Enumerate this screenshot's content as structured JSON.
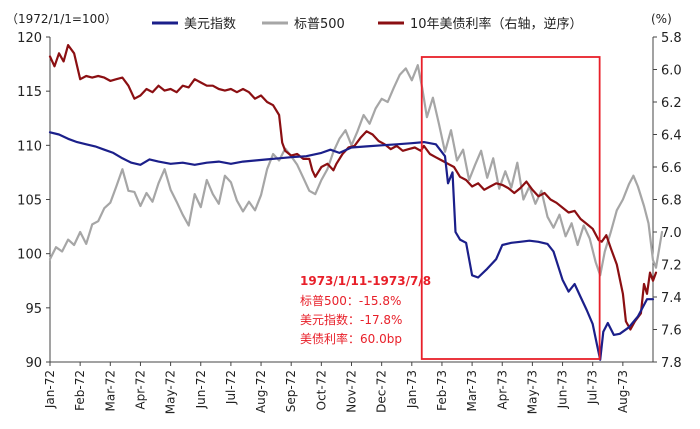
{
  "chart_data": {
    "type": "line",
    "left_axis_unit": "（1972/1/1=100）",
    "right_axis_unit": "(%)",
    "left_ylim": [
      90,
      120
    ],
    "left_ticks": [
      "120",
      "115",
      "110",
      "105",
      "100",
      "95",
      "90"
    ],
    "right_ylim": [
      5.8,
      7.8
    ],
    "right_inverted": true,
    "right_ticks": [
      "5.8",
      "6.0",
      "6.2",
      "6.4",
      "6.6",
      "6.8",
      "7.0",
      "7.2",
      "7.4",
      "7.6",
      "7.8"
    ],
    "x_ticks": [
      "Jan-72",
      "Feb-72",
      "Mar-72",
      "Apr-72",
      "May-72",
      "Jun-72",
      "Jul-72",
      "Aug-72",
      "Sep-72",
      "Oct-72",
      "Nov-72",
      "Dec-72",
      "Jan-73",
      "Feb-73",
      "Mar-73",
      "Apr-73",
      "May-73",
      "Jun-73",
      "Jul-73",
      "Aug-73"
    ],
    "x_range_months": [
      0,
      20.0
    ],
    "legend": [
      "美元指数",
      "标普500",
      "10年美债利率（右轴，逆序）"
    ],
    "colors": {
      "dxy": "#1b1f8a",
      "spx": "#a6a6a6",
      "yield": "#8b0f12",
      "highlight": "#e8202a"
    },
    "highlight_range_months": [
      12.33,
      18.23
    ],
    "annotation": {
      "title": "1973/1/11-1973/7/8",
      "lines": [
        "标普500：-15.8%",
        "美元指数：-17.8%",
        "美债利率：60.0bp"
      ]
    },
    "series": [
      {
        "name": "美元指数",
        "axis": "left",
        "points": [
          [
            0.0,
            111.2
          ],
          [
            0.3,
            111.0
          ],
          [
            0.6,
            110.6
          ],
          [
            0.9,
            110.3
          ],
          [
            1.2,
            110.1
          ],
          [
            1.5,
            109.9
          ],
          [
            1.8,
            109.6
          ],
          [
            2.1,
            109.3
          ],
          [
            2.4,
            108.8
          ],
          [
            2.7,
            108.4
          ],
          [
            3.0,
            108.2
          ],
          [
            3.3,
            108.7
          ],
          [
            3.6,
            108.5
          ],
          [
            4.0,
            108.3
          ],
          [
            4.4,
            108.4
          ],
          [
            4.8,
            108.2
          ],
          [
            5.2,
            108.4
          ],
          [
            5.6,
            108.5
          ],
          [
            6.0,
            108.3
          ],
          [
            6.4,
            108.5
          ],
          [
            6.8,
            108.6
          ],
          [
            7.2,
            108.7
          ],
          [
            7.6,
            108.8
          ],
          [
            8.0,
            108.9
          ],
          [
            8.5,
            109.0
          ],
          [
            9.0,
            109.3
          ],
          [
            9.3,
            109.6
          ],
          [
            9.6,
            109.3
          ],
          [
            10.0,
            109.8
          ],
          [
            10.5,
            109.9
          ],
          [
            11.0,
            110.0
          ],
          [
            11.5,
            110.1
          ],
          [
            12.0,
            110.2
          ],
          [
            12.4,
            110.3
          ],
          [
            12.8,
            110.1
          ],
          [
            13.1,
            109.0
          ],
          [
            13.2,
            106.5
          ],
          [
            13.35,
            107.5
          ],
          [
            13.45,
            102.0
          ],
          [
            13.6,
            101.3
          ],
          [
            13.8,
            101.0
          ],
          [
            14.0,
            98.0
          ],
          [
            14.2,
            97.8
          ],
          [
            14.5,
            98.6
          ],
          [
            14.8,
            99.5
          ],
          [
            15.0,
            100.8
          ],
          [
            15.3,
            101.0
          ],
          [
            15.6,
            101.1
          ],
          [
            15.9,
            101.2
          ],
          [
            16.2,
            101.1
          ],
          [
            16.5,
            100.9
          ],
          [
            16.7,
            100.2
          ],
          [
            17.0,
            97.6
          ],
          [
            17.2,
            96.5
          ],
          [
            17.4,
            97.2
          ],
          [
            17.6,
            96.0
          ],
          [
            17.8,
            94.8
          ],
          [
            18.0,
            93.5
          ],
          [
            18.15,
            91.5
          ],
          [
            18.25,
            90.2
          ],
          [
            18.35,
            92.8
          ],
          [
            18.5,
            93.6
          ],
          [
            18.7,
            92.5
          ],
          [
            18.9,
            92.6
          ],
          [
            19.2,
            93.2
          ],
          [
            19.5,
            94.2
          ],
          [
            19.8,
            95.8
          ],
          [
            20.0,
            95.8
          ]
        ]
      },
      {
        "name": "标普500",
        "axis": "left",
        "points": [
          [
            0.0,
            99.5
          ],
          [
            0.2,
            100.6
          ],
          [
            0.4,
            100.2
          ],
          [
            0.6,
            101.3
          ],
          [
            0.8,
            100.8
          ],
          [
            1.0,
            102.0
          ],
          [
            1.2,
            100.9
          ],
          [
            1.4,
            102.7
          ],
          [
            1.6,
            103.0
          ],
          [
            1.8,
            104.2
          ],
          [
            2.0,
            104.7
          ],
          [
            2.2,
            106.2
          ],
          [
            2.4,
            107.8
          ],
          [
            2.6,
            105.8
          ],
          [
            2.8,
            105.7
          ],
          [
            3.0,
            104.4
          ],
          [
            3.2,
            105.6
          ],
          [
            3.4,
            104.8
          ],
          [
            3.6,
            106.5
          ],
          [
            3.8,
            107.8
          ],
          [
            4.0,
            105.9
          ],
          [
            4.2,
            104.8
          ],
          [
            4.4,
            103.6
          ],
          [
            4.6,
            102.6
          ],
          [
            4.8,
            105.5
          ],
          [
            5.0,
            104.3
          ],
          [
            5.2,
            106.8
          ],
          [
            5.4,
            105.5
          ],
          [
            5.6,
            104.6
          ],
          [
            5.8,
            107.2
          ],
          [
            6.0,
            106.6
          ],
          [
            6.2,
            104.9
          ],
          [
            6.4,
            103.9
          ],
          [
            6.6,
            104.8
          ],
          [
            6.8,
            104.0
          ],
          [
            7.0,
            105.4
          ],
          [
            7.2,
            107.8
          ],
          [
            7.4,
            109.2
          ],
          [
            7.6,
            108.6
          ],
          [
            7.8,
            109.7
          ],
          [
            8.0,
            109.0
          ],
          [
            8.2,
            108.2
          ],
          [
            8.4,
            107.0
          ],
          [
            8.6,
            105.8
          ],
          [
            8.8,
            105.5
          ],
          [
            9.0,
            106.8
          ],
          [
            9.2,
            107.8
          ],
          [
            9.4,
            109.4
          ],
          [
            9.6,
            110.6
          ],
          [
            9.8,
            111.4
          ],
          [
            10.0,
            110.0
          ],
          [
            10.2,
            111.3
          ],
          [
            10.4,
            112.8
          ],
          [
            10.6,
            112.0
          ],
          [
            10.8,
            113.4
          ],
          [
            11.0,
            114.3
          ],
          [
            11.2,
            114.0
          ],
          [
            11.4,
            115.3
          ],
          [
            11.6,
            116.5
          ],
          [
            11.8,
            117.1
          ],
          [
            12.0,
            116.0
          ],
          [
            12.2,
            117.4
          ],
          [
            12.35,
            115.2
          ],
          [
            12.5,
            112.6
          ],
          [
            12.7,
            114.4
          ],
          [
            12.9,
            112.0
          ],
          [
            13.1,
            109.4
          ],
          [
            13.3,
            111.4
          ],
          [
            13.5,
            108.6
          ],
          [
            13.7,
            109.6
          ],
          [
            13.9,
            106.8
          ],
          [
            14.1,
            108.2
          ],
          [
            14.3,
            109.5
          ],
          [
            14.5,
            107.0
          ],
          [
            14.7,
            108.8
          ],
          [
            14.9,
            106.0
          ],
          [
            15.1,
            107.6
          ],
          [
            15.3,
            106.1
          ],
          [
            15.5,
            108.4
          ],
          [
            15.7,
            105.0
          ],
          [
            15.9,
            106.2
          ],
          [
            16.1,
            104.6
          ],
          [
            16.3,
            105.8
          ],
          [
            16.5,
            103.4
          ],
          [
            16.7,
            102.4
          ],
          [
            16.9,
            103.6
          ],
          [
            17.1,
            101.6
          ],
          [
            17.3,
            102.8
          ],
          [
            17.5,
            100.8
          ],
          [
            17.7,
            102.6
          ],
          [
            17.9,
            101.4
          ],
          [
            18.1,
            99.2
          ],
          [
            18.25,
            98.0
          ],
          [
            18.4,
            100.2
          ],
          [
            18.6,
            102.0
          ],
          [
            18.8,
            104.0
          ],
          [
            19.0,
            105.0
          ],
          [
            19.2,
            106.4
          ],
          [
            19.35,
            107.2
          ],
          [
            19.5,
            106.2
          ],
          [
            19.7,
            104.4
          ],
          [
            19.85,
            102.8
          ],
          [
            20.0,
            99.4
          ],
          [
            20.1,
            98.7
          ],
          [
            20.3,
            102.0
          ]
        ]
      },
      {
        "name": "10年美债利率（右轴，逆序）",
        "axis": "right",
        "points": [
          [
            0.0,
            5.92
          ],
          [
            0.15,
            5.98
          ],
          [
            0.3,
            5.9
          ],
          [
            0.45,
            5.95
          ],
          [
            0.6,
            5.85
          ],
          [
            0.8,
            5.9
          ],
          [
            1.0,
            6.06
          ],
          [
            1.2,
            6.04
          ],
          [
            1.4,
            6.05
          ],
          [
            1.6,
            6.04
          ],
          [
            1.8,
            6.05
          ],
          [
            2.0,
            6.07
          ],
          [
            2.2,
            6.06
          ],
          [
            2.4,
            6.05
          ],
          [
            2.6,
            6.1
          ],
          [
            2.8,
            6.18
          ],
          [
            3.0,
            6.16
          ],
          [
            3.2,
            6.12
          ],
          [
            3.4,
            6.14
          ],
          [
            3.6,
            6.1
          ],
          [
            3.8,
            6.13
          ],
          [
            4.0,
            6.12
          ],
          [
            4.2,
            6.14
          ],
          [
            4.4,
            6.1
          ],
          [
            4.6,
            6.11
          ],
          [
            4.8,
            6.06
          ],
          [
            5.0,
            6.08
          ],
          [
            5.2,
            6.1
          ],
          [
            5.4,
            6.1
          ],
          [
            5.6,
            6.12
          ],
          [
            5.8,
            6.13
          ],
          [
            6.0,
            6.12
          ],
          [
            6.2,
            6.14
          ],
          [
            6.4,
            6.12
          ],
          [
            6.6,
            6.14
          ],
          [
            6.8,
            6.18
          ],
          [
            7.0,
            6.16
          ],
          [
            7.2,
            6.2
          ],
          [
            7.4,
            6.22
          ],
          [
            7.6,
            6.28
          ],
          [
            7.7,
            6.45
          ],
          [
            7.8,
            6.5
          ],
          [
            8.0,
            6.53
          ],
          [
            8.2,
            6.52
          ],
          [
            8.4,
            6.55
          ],
          [
            8.6,
            6.55
          ],
          [
            8.7,
            6.62
          ],
          [
            8.8,
            6.66
          ],
          [
            9.0,
            6.6
          ],
          [
            9.2,
            6.58
          ],
          [
            9.4,
            6.62
          ],
          [
            9.5,
            6.58
          ],
          [
            9.7,
            6.52
          ],
          [
            9.9,
            6.48
          ],
          [
            10.1,
            6.47
          ],
          [
            10.3,
            6.42
          ],
          [
            10.5,
            6.38
          ],
          [
            10.7,
            6.4
          ],
          [
            10.9,
            6.44
          ],
          [
            11.1,
            6.46
          ],
          [
            11.3,
            6.49
          ],
          [
            11.5,
            6.47
          ],
          [
            11.7,
            6.5
          ],
          [
            11.9,
            6.49
          ],
          [
            12.1,
            6.48
          ],
          [
            12.3,
            6.5
          ],
          [
            12.4,
            6.47
          ],
          [
            12.6,
            6.52
          ],
          [
            12.8,
            6.54
          ],
          [
            13.0,
            6.56
          ],
          [
            13.2,
            6.58
          ],
          [
            13.4,
            6.6
          ],
          [
            13.6,
            6.66
          ],
          [
            13.8,
            6.68
          ],
          [
            14.0,
            6.72
          ],
          [
            14.2,
            6.7
          ],
          [
            14.4,
            6.74
          ],
          [
            14.6,
            6.72
          ],
          [
            14.8,
            6.7
          ],
          [
            15.0,
            6.71
          ],
          [
            15.2,
            6.73
          ],
          [
            15.4,
            6.76
          ],
          [
            15.6,
            6.73
          ],
          [
            15.8,
            6.69
          ],
          [
            16.0,
            6.74
          ],
          [
            16.2,
            6.78
          ],
          [
            16.4,
            6.76
          ],
          [
            16.6,
            6.8
          ],
          [
            16.8,
            6.82
          ],
          [
            17.0,
            6.85
          ],
          [
            17.2,
            6.88
          ],
          [
            17.4,
            6.87
          ],
          [
            17.6,
            6.92
          ],
          [
            17.8,
            6.95
          ],
          [
            18.0,
            6.98
          ],
          [
            18.2,
            7.05
          ],
          [
            18.3,
            7.06
          ],
          [
            18.45,
            7.02
          ],
          [
            18.6,
            7.1
          ],
          [
            18.8,
            7.2
          ],
          [
            19.0,
            7.38
          ],
          [
            19.1,
            7.55
          ],
          [
            19.25,
            7.6
          ],
          [
            19.4,
            7.55
          ],
          [
            19.6,
            7.5
          ],
          [
            19.7,
            7.32
          ],
          [
            19.8,
            7.38
          ],
          [
            19.9,
            7.25
          ],
          [
            20.0,
            7.3
          ],
          [
            20.1,
            7.25
          ]
        ]
      }
    ]
  }
}
